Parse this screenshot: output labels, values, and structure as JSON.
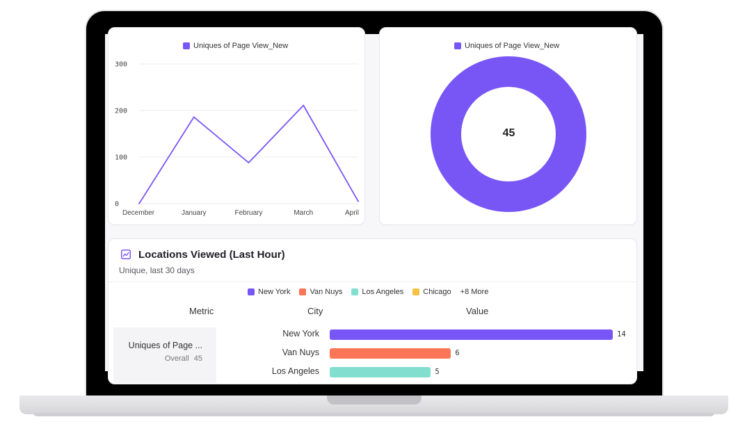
{
  "colors": {
    "purple": "#7856f6",
    "orange": "#fb7656",
    "teal": "#82dfd0",
    "yellow": "#f7c244",
    "frame": "#000000",
    "base": "#e3e3e6"
  },
  "line_chart": {
    "legend": "Uniques of Page View_New",
    "y_ticks": [
      "300",
      "200",
      "100",
      "0"
    ]
  },
  "donut_chart": {
    "legend": "Uniques of Page View_New",
    "center_value": "45"
  },
  "locations_card": {
    "title": "Locations Viewed (Last Hour)",
    "subtitle": "Unique, last 30 days",
    "icon": "line-chart-icon",
    "legend": [
      {
        "label": "New York",
        "color": "#7856f6"
      },
      {
        "label": "Van Nuys",
        "color": "#fb7656"
      },
      {
        "label": "Los Angeles",
        "color": "#82dfd0"
      },
      {
        "label": "Chicago",
        "color": "#f7c244"
      }
    ],
    "more_label": "+8 More",
    "columns": {
      "metric": "Metric",
      "city": "City",
      "value": "Value"
    },
    "metric_name": "Uniques of Page ...",
    "overall_label": "Overall",
    "overall_value": "45"
  },
  "chart_data": [
    {
      "type": "line",
      "title": "",
      "x": [
        "December",
        "January",
        "February",
        "March",
        "April"
      ],
      "series": [
        {
          "name": "Uniques of Page View_New",
          "values": [
            0,
            186,
            88,
            211,
            5
          ]
        }
      ],
      "ylim": [
        0,
        300
      ],
      "y_ticks": [
        0,
        100,
        200,
        300
      ],
      "grid": true,
      "legend_position": "top"
    },
    {
      "type": "pie",
      "title": "",
      "categories": [
        "Uniques of Page View_New"
      ],
      "values": [
        45
      ],
      "center_label": "45",
      "legend_position": "top"
    },
    {
      "type": "bar",
      "orientation": "horizontal",
      "categories": [
        "New York",
        "Van Nuys",
        "Los Angeles"
      ],
      "values": [
        14,
        6,
        5
      ],
      "colors": [
        "#7856f6",
        "#fb7656",
        "#82dfd0"
      ]
    }
  ]
}
